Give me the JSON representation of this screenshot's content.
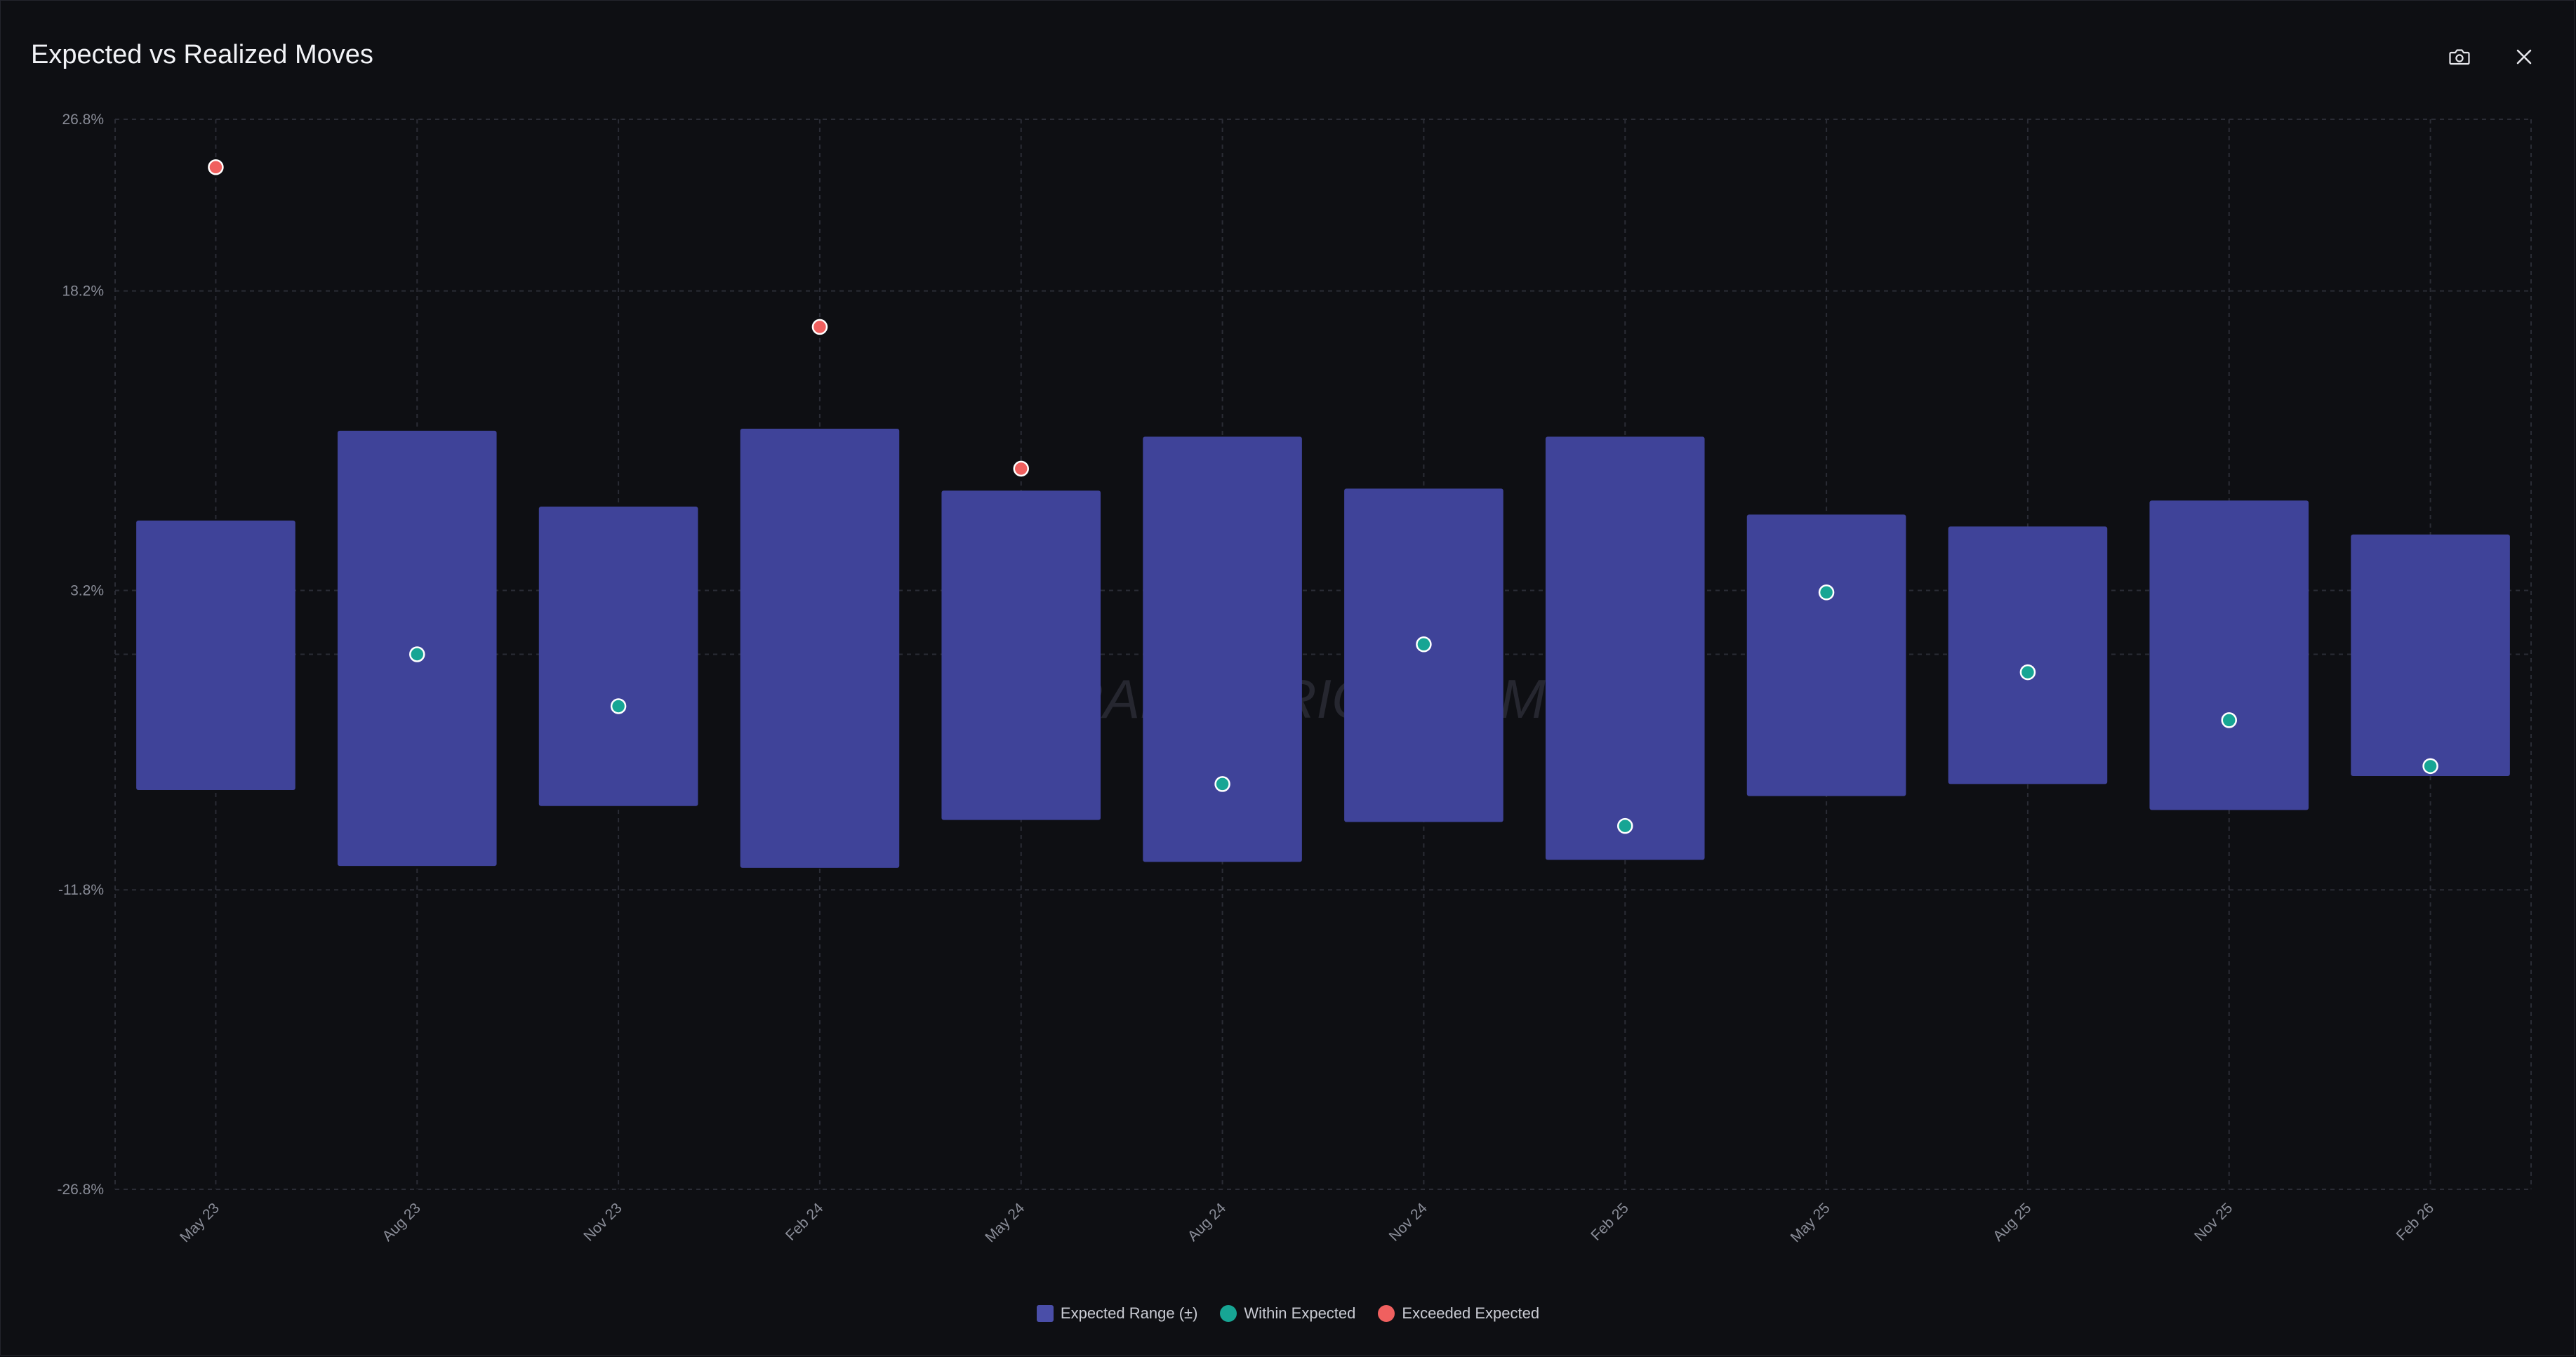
{
  "header": {
    "title": "Expected vs Realized Moves",
    "camera_icon": "camera-icon",
    "close_icon": "close-icon"
  },
  "watermark": "TRADINGRIOT.COM",
  "colors": {
    "expected_range": "#3f4399",
    "within": "#17a594",
    "exceeded": "#f0605f",
    "grid": "#2a2c35"
  },
  "legend": [
    {
      "label": "Expected Range (±)",
      "color": "#4a4ea8",
      "shape": "square"
    },
    {
      "label": "Within Expected",
      "color": "#17a594",
      "shape": "circle"
    },
    {
      "label": "Exceeded Expected",
      "color": "#f0605f",
      "shape": "circle"
    }
  ],
  "chart_data": {
    "type": "bar",
    "title": "Expected vs Realized Moves",
    "ylim": [
      -26.8,
      26.8
    ],
    "yticks": [
      "26.8%",
      "18.2%",
      "3.2%",
      "-11.8%",
      "-26.8%"
    ],
    "ytick_values": [
      26.8,
      18.2,
      3.2,
      -11.8,
      -26.8
    ],
    "categories": [
      "May 23",
      "Aug 23",
      "Nov 23",
      "Feb 24",
      "May 24",
      "Aug 24",
      "Nov 24",
      "Feb 25",
      "May 25",
      "Aug 25",
      "Nov 25",
      "Feb 26"
    ],
    "grid": true,
    "legend_position": "bottom",
    "series": [
      {
        "name": "Expected Range (±)",
        "type": "range",
        "values": [
          [
            -6.8,
            6.7
          ],
          [
            -10.6,
            11.2
          ],
          [
            -7.6,
            7.4
          ],
          [
            -10.7,
            11.3
          ],
          [
            -8.3,
            8.2
          ],
          [
            -10.4,
            10.9
          ],
          [
            -8.4,
            8.3
          ],
          [
            -10.3,
            10.9
          ],
          [
            -7.1,
            7.0
          ],
          [
            -6.5,
            6.4
          ],
          [
            -7.8,
            7.7
          ],
          [
            -6.1,
            6.0
          ]
        ]
      },
      {
        "name": "Within Expected",
        "type": "scatter",
        "values": [
          null,
          0.0,
          -2.6,
          null,
          null,
          -6.5,
          0.5,
          -8.6,
          3.1,
          -0.9,
          -3.3,
          -5.6
        ]
      },
      {
        "name": "Exceeded Expected",
        "type": "scatter",
        "values": [
          24.4,
          null,
          null,
          16.4,
          9.3,
          null,
          null,
          null,
          null,
          null,
          null,
          null
        ]
      }
    ]
  }
}
